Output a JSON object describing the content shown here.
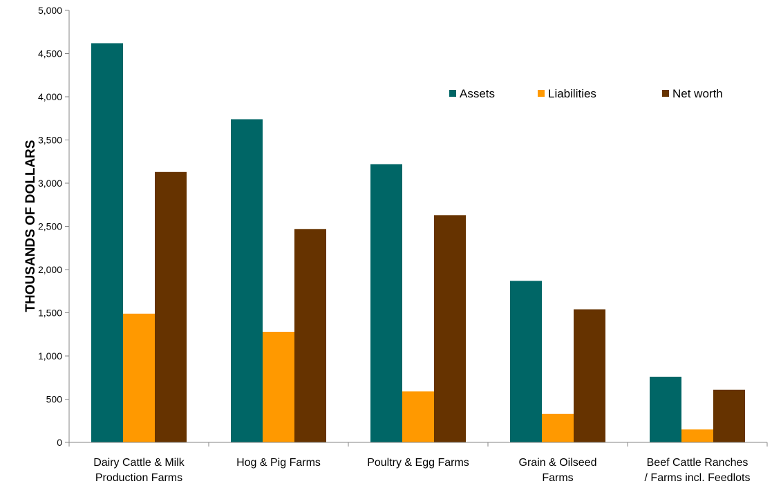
{
  "chart_data": {
    "type": "bar",
    "title": "",
    "xlabel": "",
    "ylabel": "THOUSANDS OF DOLLARS",
    "ylim": [
      0,
      5000
    ],
    "yticks": [
      0,
      500,
      1000,
      1500,
      2000,
      2500,
      3000,
      3500,
      4000,
      4500,
      5000
    ],
    "ytick_labels": [
      "0",
      "500",
      "1,000",
      "1,500",
      "2,000",
      "2,500",
      "3,000",
      "3,500",
      "4,000",
      "4,500",
      "5,000"
    ],
    "categories": [
      [
        "Dairy Cattle & Milk",
        "Production Farms"
      ],
      [
        "Hog & Pig Farms"
      ],
      [
        "Poultry & Egg Farms"
      ],
      [
        "Grain & Oilseed",
        "Farms"
      ],
      [
        "Beef Cattle Ranches",
        "/ Farms incl. Feedlots"
      ]
    ],
    "series": [
      {
        "name": "Assets",
        "color": "#006666",
        "values": [
          4620,
          3740,
          3220,
          1870,
          760
        ]
      },
      {
        "name": "Liabilities",
        "color": "#ff9900",
        "values": [
          1490,
          1280,
          590,
          330,
          150
        ]
      },
      {
        "name": "Net worth",
        "color": "#663300",
        "values": [
          3130,
          2470,
          2630,
          1540,
          610
        ]
      }
    ],
    "legend_position": "top-right",
    "grid": false,
    "axis_color": "#868686"
  }
}
